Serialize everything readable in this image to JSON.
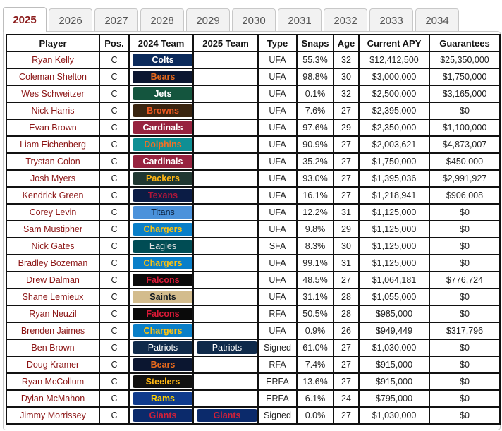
{
  "tabs": [
    "2025",
    "2026",
    "2027",
    "2028",
    "2029",
    "2030",
    "2031",
    "2032",
    "2033",
    "2034"
  ],
  "active_tab_index": 0,
  "columns": [
    "Player",
    "Pos.",
    "2024 Team",
    "2025 Team",
    "Type",
    "Snaps",
    "Age",
    "Current APY",
    "Guarantees"
  ],
  "teams": {
    "Colts": {
      "bg": "#0b2a5b",
      "fg": "#ffffff"
    },
    "Bears": {
      "bg": "#0b1630",
      "fg": "#e86a1c"
    },
    "Jets": {
      "bg": "#14553e",
      "fg": "#ffffff"
    },
    "Browns": {
      "bg": "#3a2510",
      "fg": "#f05a22"
    },
    "Cardinals": {
      "bg": "#97233f",
      "fg": "#ffffff"
    },
    "Dolphins": {
      "bg": "#0f8f94",
      "fg": "#f27025"
    },
    "Packers": {
      "bg": "#203731",
      "fg": "#ffb612"
    },
    "Texans": {
      "bg": "#0b1c45",
      "fg": "#b0163a"
    },
    "Titans": {
      "bg": "#4b92db",
      "fg": "#0c2340"
    },
    "Chargers": {
      "bg": "#0a7fc8",
      "fg": "#ffc20e"
    },
    "Eagles": {
      "bg": "#004c54",
      "fg": "#e0e0e0"
    },
    "Falcons": {
      "bg": "#0a0a0a",
      "fg": "#d71936"
    },
    "Saints": {
      "bg": "#d3bc8d",
      "fg": "#101820"
    },
    "Patriots": {
      "bg": "#0f2a4a",
      "fg": "#ffffff"
    },
    "Steelers": {
      "bg": "#111111",
      "fg": "#ffb612"
    },
    "Rams": {
      "bg": "#0f3a8c",
      "fg": "#ffd100"
    },
    "Giants": {
      "bg": "#0b2a6b",
      "fg": "#d0203a"
    }
  },
  "plain_pill_teams": [
    "Titans",
    "Eagles",
    "Patriots"
  ],
  "rows": [
    {
      "player": "Ryan Kelly",
      "pos": "C",
      "team2024": "Colts",
      "team2025": "",
      "type": "UFA",
      "snaps": "55.3%",
      "age": "32",
      "apy": "$12,412,500",
      "guarantees": "$25,350,000"
    },
    {
      "player": "Coleman Shelton",
      "pos": "C",
      "team2024": "Bears",
      "team2025": "",
      "type": "UFA",
      "snaps": "98.8%",
      "age": "30",
      "apy": "$3,000,000",
      "guarantees": "$1,750,000"
    },
    {
      "player": "Wes Schweitzer",
      "pos": "C",
      "team2024": "Jets",
      "team2025": "",
      "type": "UFA",
      "snaps": "0.1%",
      "age": "32",
      "apy": "$2,500,000",
      "guarantees": "$3,165,000"
    },
    {
      "player": "Nick Harris",
      "pos": "C",
      "team2024": "Browns",
      "team2025": "",
      "type": "UFA",
      "snaps": "7.6%",
      "age": "27",
      "apy": "$2,395,000",
      "guarantees": "$0"
    },
    {
      "player": "Evan Brown",
      "pos": "C",
      "team2024": "Cardinals",
      "team2025": "",
      "type": "UFA",
      "snaps": "97.6%",
      "age": "29",
      "apy": "$2,350,000",
      "guarantees": "$1,100,000"
    },
    {
      "player": "Liam Eichenberg",
      "pos": "C",
      "team2024": "Dolphins",
      "team2025": "",
      "type": "UFA",
      "snaps": "90.9%",
      "age": "27",
      "apy": "$2,003,621",
      "guarantees": "$4,873,007"
    },
    {
      "player": "Trystan Colon",
      "pos": "C",
      "team2024": "Cardinals",
      "team2025": "",
      "type": "UFA",
      "snaps": "35.2%",
      "age": "27",
      "apy": "$1,750,000",
      "guarantees": "$450,000"
    },
    {
      "player": "Josh Myers",
      "pos": "C",
      "team2024": "Packers",
      "team2025": "",
      "type": "UFA",
      "snaps": "93.0%",
      "age": "27",
      "apy": "$1,395,036",
      "guarantees": "$2,991,927"
    },
    {
      "player": "Kendrick Green",
      "pos": "C",
      "team2024": "Texans",
      "team2025": "",
      "type": "UFA",
      "snaps": "16.1%",
      "age": "27",
      "apy": "$1,218,941",
      "guarantees": "$906,008"
    },
    {
      "player": "Corey Levin",
      "pos": "C",
      "team2024": "Titans",
      "team2025": "",
      "type": "UFA",
      "snaps": "12.2%",
      "age": "31",
      "apy": "$1,125,000",
      "guarantees": "$0"
    },
    {
      "player": "Sam Mustipher",
      "pos": "C",
      "team2024": "Chargers",
      "team2025": "",
      "type": "UFA",
      "snaps": "9.8%",
      "age": "29",
      "apy": "$1,125,000",
      "guarantees": "$0"
    },
    {
      "player": "Nick Gates",
      "pos": "C",
      "team2024": "Eagles",
      "team2025": "",
      "type": "SFA",
      "snaps": "8.3%",
      "age": "30",
      "apy": "$1,125,000",
      "guarantees": "$0"
    },
    {
      "player": "Bradley Bozeman",
      "pos": "C",
      "team2024": "Chargers",
      "team2025": "",
      "type": "UFA",
      "snaps": "99.1%",
      "age": "31",
      "apy": "$1,125,000",
      "guarantees": "$0"
    },
    {
      "player": "Drew Dalman",
      "pos": "C",
      "team2024": "Falcons",
      "team2025": "",
      "type": "UFA",
      "snaps": "48.5%",
      "age": "27",
      "apy": "$1,064,181",
      "guarantees": "$776,724"
    },
    {
      "player": "Shane Lemieux",
      "pos": "C",
      "team2024": "Saints",
      "team2025": "",
      "type": "UFA",
      "snaps": "31.1%",
      "age": "28",
      "apy": "$1,055,000",
      "guarantees": "$0"
    },
    {
      "player": "Ryan Neuzil",
      "pos": "C",
      "team2024": "Falcons",
      "team2025": "",
      "type": "RFA",
      "snaps": "50.5%",
      "age": "28",
      "apy": "$985,000",
      "guarantees": "$0"
    },
    {
      "player": "Brenden Jaimes",
      "pos": "C",
      "team2024": "Chargers",
      "team2025": "",
      "type": "UFA",
      "snaps": "0.9%",
      "age": "26",
      "apy": "$949,449",
      "guarantees": "$317,796"
    },
    {
      "player": "Ben Brown",
      "pos": "C",
      "team2024": "Patriots",
      "team2025": "Patriots",
      "type": "Signed",
      "snaps": "61.0%",
      "age": "27",
      "apy": "$1,030,000",
      "guarantees": "$0"
    },
    {
      "player": "Doug Kramer",
      "pos": "C",
      "team2024": "Bears",
      "team2025": "",
      "type": "RFA",
      "snaps": "7.4%",
      "age": "27",
      "apy": "$915,000",
      "guarantees": "$0"
    },
    {
      "player": "Ryan McCollum",
      "pos": "C",
      "team2024": "Steelers",
      "team2025": "",
      "type": "ERFA",
      "snaps": "13.6%",
      "age": "27",
      "apy": "$915,000",
      "guarantees": "$0"
    },
    {
      "player": "Dylan McMahon",
      "pos": "C",
      "team2024": "Rams",
      "team2025": "",
      "type": "ERFA",
      "snaps": "6.1%",
      "age": "24",
      "apy": "$795,000",
      "guarantees": "$0"
    },
    {
      "player": "Jimmy Morrissey",
      "pos": "C",
      "team2024": "Giants",
      "team2025": "Giants",
      "type": "Signed",
      "snaps": "0.0%",
      "age": "27",
      "apy": "$1,030,000",
      "guarantees": "$0"
    }
  ]
}
